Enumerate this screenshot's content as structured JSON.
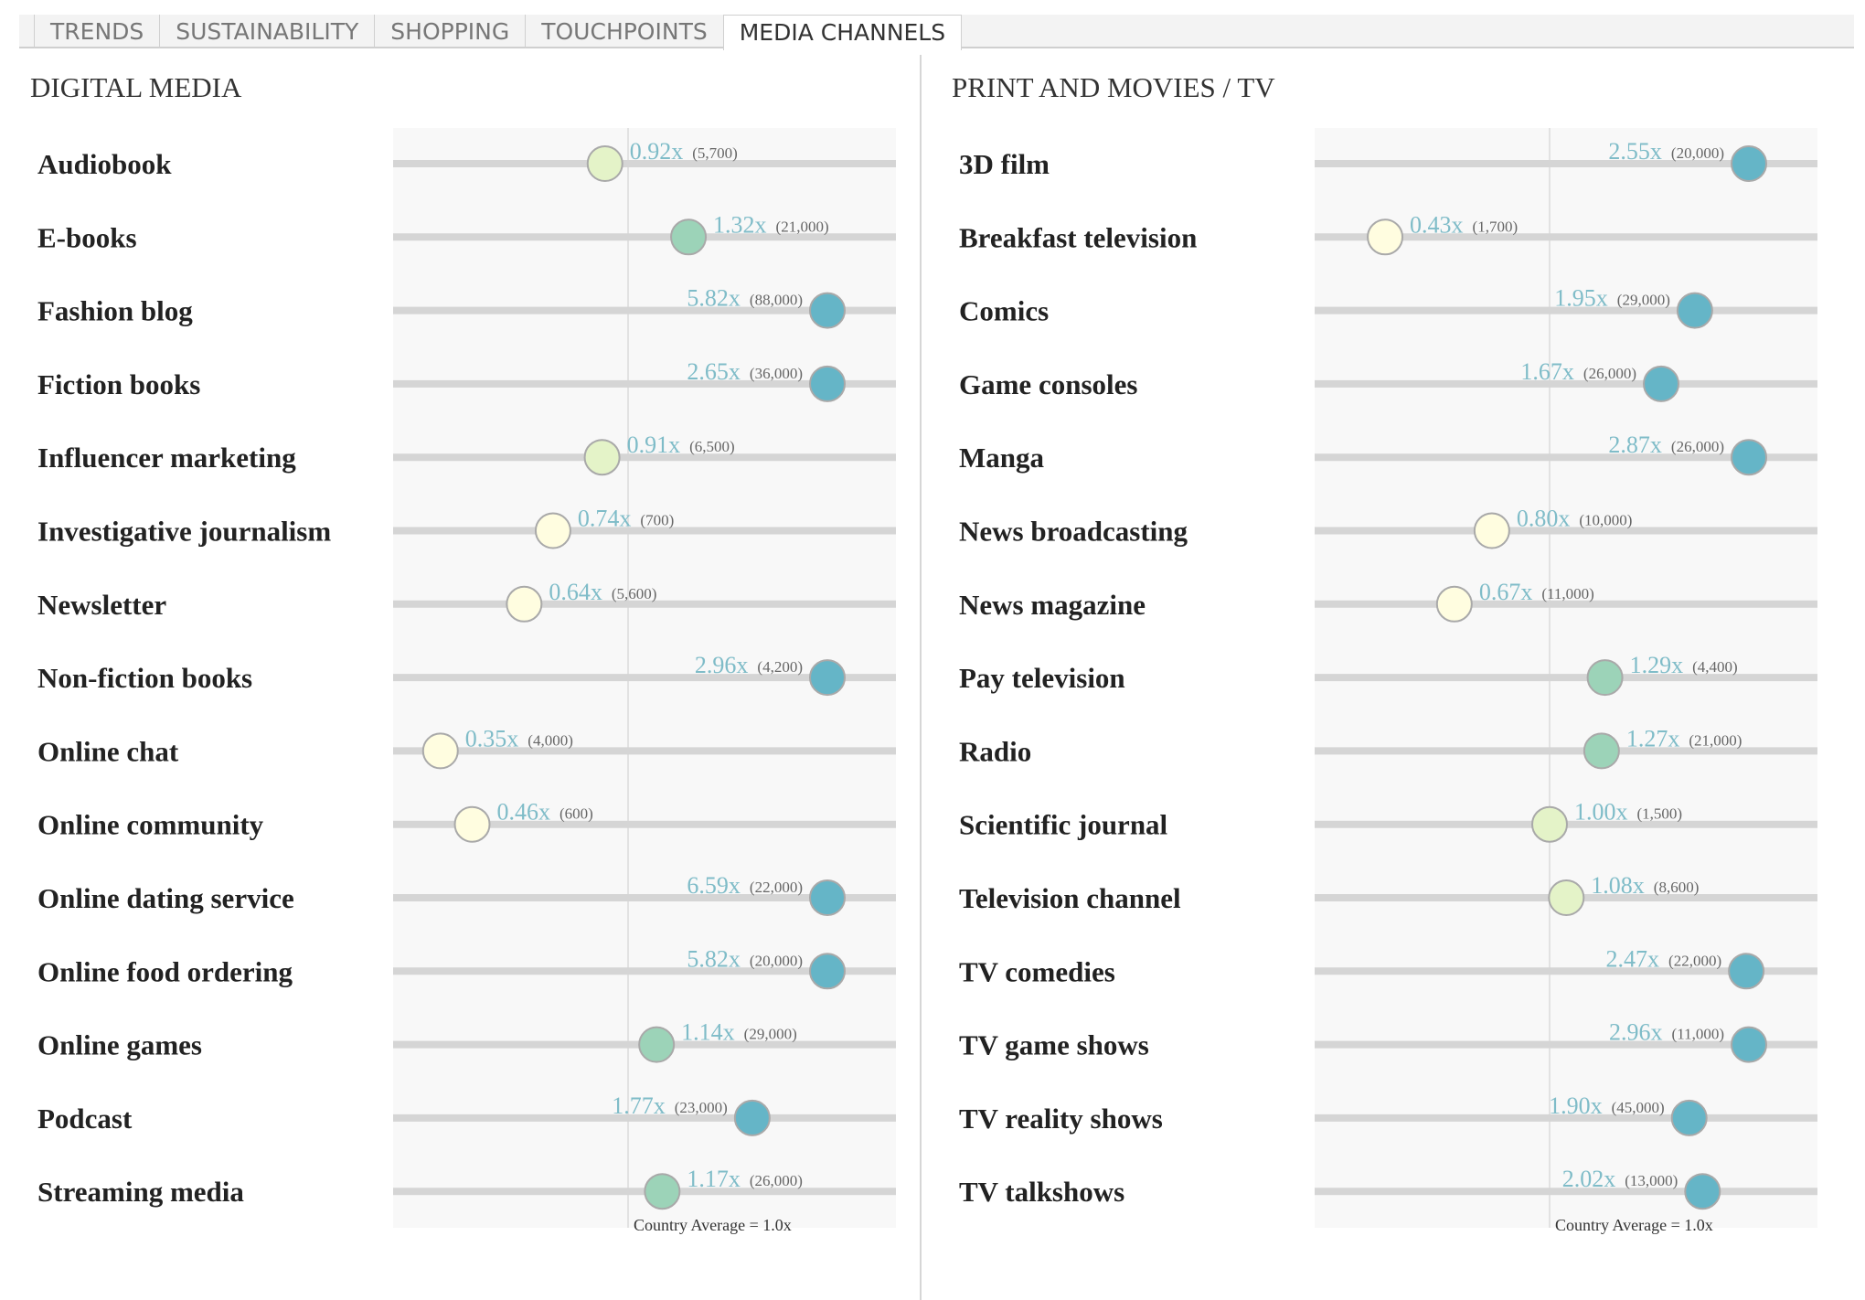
{
  "tabs": [
    {
      "label": "TRENDS",
      "active": false
    },
    {
      "label": "SUSTAINABILITY",
      "active": false
    },
    {
      "label": "SHOPPING",
      "active": false
    },
    {
      "label": "TOUCHPOINTS",
      "active": false
    },
    {
      "label": "MEDIA CHANNELS",
      "active": true
    }
  ],
  "colors": {
    "low": "#fffde0",
    "near_average": "#e4f3c8",
    "moderate": "#9cd3b8",
    "high": "#65b5c7",
    "multiplier_text": "#7fbcc8",
    "track": "#d5d5d5",
    "plot_background": "#f8f8f8"
  },
  "chart_data": [
    {
      "type": "dot",
      "title": "DIGITAL MEDIA",
      "axis_note": "Country Average = 1.0x",
      "categories": [
        "Audiobook",
        "E-books",
        "Fashion blog",
        "Fiction books",
        "Influencer marketing",
        "Investigative journalism",
        "Newsletter",
        "Non-fiction books",
        "Online chat",
        "Online community",
        "Online dating service",
        "Online food ordering",
        "Online games",
        "Podcast",
        "Streaming media"
      ],
      "values": [
        0.92,
        1.32,
        5.82,
        2.65,
        0.91,
        0.74,
        0.64,
        2.96,
        0.35,
        0.46,
        6.59,
        5.82,
        1.14,
        1.77,
        1.17
      ],
      "value_labels": [
        "0.92x",
        "1.32x",
        "5.82x",
        "2.65x",
        "0.91x",
        "0.74x",
        "0.64x",
        "2.96x",
        "0.35x",
        "0.46x",
        "6.59x",
        "5.82x",
        "1.14x",
        "1.77x",
        "1.17x"
      ],
      "counts": [
        "(5,700)",
        "(21,000)",
        "(88,000)",
        "(36,000)",
        "(6,500)",
        "(700)",
        "(5,600)",
        "(4,200)",
        "(4,000)",
        "(600)",
        "(22,000)",
        "(20,000)",
        "(29,000)",
        "(23,000)",
        "(26,000)"
      ]
    },
    {
      "type": "dot",
      "title": "PRINT AND MOVIES / TV",
      "axis_note": "Country Average = 1.0x",
      "categories": [
        "3D film",
        "Breakfast television",
        "Comics",
        "Game consoles",
        "Manga",
        "News broadcasting",
        "News magazine",
        "Pay television",
        "Radio",
        "Scientific journal",
        "Television channel",
        "TV comedies",
        "TV game shows",
        "TV reality shows",
        "TV talkshows"
      ],
      "values": [
        2.55,
        0.43,
        1.95,
        1.67,
        2.87,
        0.8,
        0.67,
        1.29,
        1.27,
        1.0,
        1.08,
        2.47,
        2.96,
        1.9,
        2.02
      ],
      "value_labels": [
        "2.55x",
        "0.43x",
        "1.95x",
        "1.67x",
        "2.87x",
        "0.80x",
        "0.67x",
        "1.29x",
        "1.27x",
        "1.00x",
        "1.08x",
        "2.47x",
        "2.96x",
        "1.90x",
        "2.02x"
      ],
      "counts": [
        "(20,000)",
        "(1,700)",
        "(29,000)",
        "(26,000)",
        "(26,000)",
        "(10,000)",
        "(11,000)",
        "(4,400)",
        "(21,000)",
        "(1,500)",
        "(8,600)",
        "(22,000)",
        "(11,000)",
        "(45,000)",
        "(13,000)"
      ]
    }
  ]
}
